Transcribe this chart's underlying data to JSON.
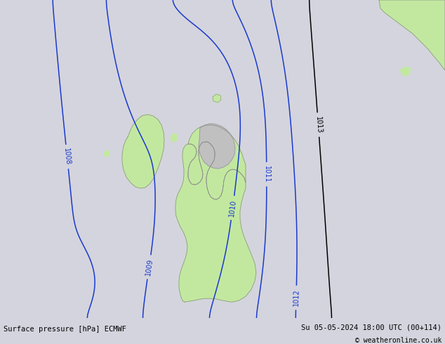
{
  "title_left": "Surface pressure [hPa] ECMWF",
  "title_right": "Su 05-05-2024 18:00 UTC (00+114)",
  "copyright": "© weatheronline.co.uk",
  "bg_color": "#d4d4de",
  "land_color_green": "#c2e8a0",
  "land_color_gray": "#c0c0c0",
  "coast_color": "#888888",
  "contour_color_blue": "#1a3acc",
  "contour_color_black": "#000000",
  "figsize": [
    6.34,
    4.9
  ],
  "dpi": 100,
  "bottom_bar_color": "#c8c8cc",
  "font_size_labels": 7,
  "font_size_bottom": 7.5
}
